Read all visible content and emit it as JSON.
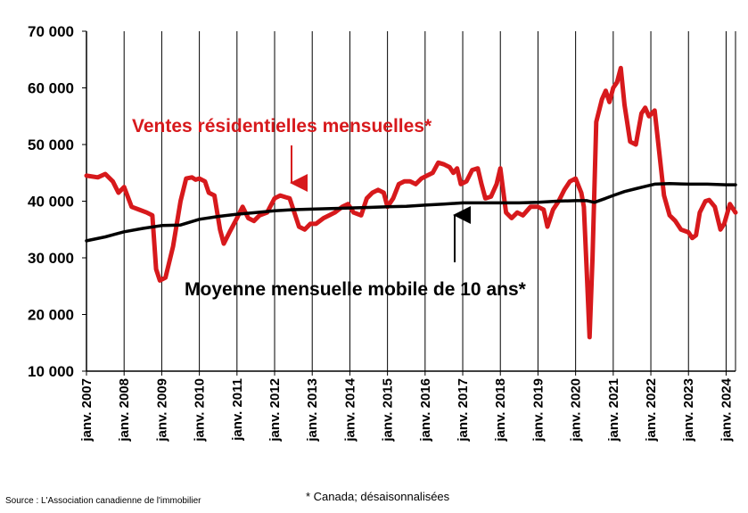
{
  "chart_data": {
    "type": "line",
    "ylim": [
      10000,
      70000
    ],
    "yticks": [
      {
        "value": 70000,
        "label": "70 000"
      },
      {
        "value": 60000,
        "label": "60 000"
      },
      {
        "value": 50000,
        "label": "50 000"
      },
      {
        "value": 40000,
        "label": "40 000"
      },
      {
        "value": 30000,
        "label": "30 000"
      },
      {
        "value": 20000,
        "label": "20 000"
      },
      {
        "value": 10000,
        "label": "10 000"
      }
    ],
    "xlim": [
      2007.0,
      2024.25
    ],
    "xticks": [
      {
        "value": 2007,
        "label": "janv. 2007"
      },
      {
        "value": 2008,
        "label": "janv. 2008"
      },
      {
        "value": 2009,
        "label": "janv. 2009"
      },
      {
        "value": 2010,
        "label": "janv. 2010"
      },
      {
        "value": 2011,
        "label": "janv. 2011"
      },
      {
        "value": 2012,
        "label": "janv. 2012"
      },
      {
        "value": 2013,
        "label": "janv. 2013"
      },
      {
        "value": 2014,
        "label": "janv. 2014"
      },
      {
        "value": 2015,
        "label": "janv. 2015"
      },
      {
        "value": 2016,
        "label": "janv. 2016"
      },
      {
        "value": 2017,
        "label": "janv. 2017"
      },
      {
        "value": 2018,
        "label": "janv. 2018"
      },
      {
        "value": 2019,
        "label": "janv. 2019"
      },
      {
        "value": 2020,
        "label": "janv. 2020"
      },
      {
        "value": 2021,
        "label": "janv. 2021"
      },
      {
        "value": 2022,
        "label": "janv. 2022"
      },
      {
        "value": 2023,
        "label": "janv. 2023"
      },
      {
        "value": 2024,
        "label": "janv. 2024"
      }
    ],
    "grid": {
      "vertical": true,
      "horizontal": false
    },
    "series": [
      {
        "name": "Ventes résidentielles mensuelles*",
        "color": "#d7191c",
        "points": [
          [
            2007.0,
            44500
          ],
          [
            2007.3,
            44200
          ],
          [
            2007.5,
            44800
          ],
          [
            2007.7,
            43500
          ],
          [
            2007.85,
            41500
          ],
          [
            2008.0,
            42500
          ],
          [
            2008.2,
            39000
          ],
          [
            2008.4,
            38500
          ],
          [
            2008.6,
            38000
          ],
          [
            2008.75,
            37500
          ],
          [
            2008.85,
            28000
          ],
          [
            2008.95,
            26000
          ],
          [
            2009.1,
            26500
          ],
          [
            2009.3,
            32000
          ],
          [
            2009.5,
            40000
          ],
          [
            2009.65,
            44000
          ],
          [
            2009.8,
            44200
          ],
          [
            2009.9,
            43800
          ],
          [
            2010.0,
            44000
          ],
          [
            2010.15,
            43500
          ],
          [
            2010.25,
            41500
          ],
          [
            2010.4,
            41000
          ],
          [
            2010.55,
            35000
          ],
          [
            2010.65,
            32500
          ],
          [
            2010.8,
            34500
          ],
          [
            2011.0,
            37000
          ],
          [
            2011.15,
            39000
          ],
          [
            2011.3,
            37000
          ],
          [
            2011.45,
            36500
          ],
          [
            2011.6,
            37500
          ],
          [
            2011.8,
            38000
          ],
          [
            2012.0,
            40500
          ],
          [
            2012.15,
            41000
          ],
          [
            2012.3,
            40700
          ],
          [
            2012.4,
            40500
          ],
          [
            2012.55,
            37500
          ],
          [
            2012.65,
            35500
          ],
          [
            2012.8,
            35000
          ],
          [
            2012.95,
            36000
          ],
          [
            2013.1,
            36000
          ],
          [
            2013.3,
            37000
          ],
          [
            2013.45,
            37500
          ],
          [
            2013.6,
            38000
          ],
          [
            2013.8,
            39000
          ],
          [
            2013.95,
            39500
          ],
          [
            2014.1,
            38000
          ],
          [
            2014.3,
            37500
          ],
          [
            2014.45,
            40500
          ],
          [
            2014.6,
            41500
          ],
          [
            2014.75,
            42000
          ],
          [
            2014.9,
            41500
          ],
          [
            2015.0,
            39000
          ],
          [
            2015.15,
            40500
          ],
          [
            2015.3,
            43000
          ],
          [
            2015.45,
            43500
          ],
          [
            2015.6,
            43500
          ],
          [
            2015.75,
            43000
          ],
          [
            2015.9,
            44000
          ],
          [
            2016.05,
            44500
          ],
          [
            2016.2,
            45000
          ],
          [
            2016.35,
            46800
          ],
          [
            2016.5,
            46500
          ],
          [
            2016.65,
            46000
          ],
          [
            2016.75,
            45000
          ],
          [
            2016.85,
            45800
          ],
          [
            2016.95,
            43000
          ],
          [
            2017.1,
            43500
          ],
          [
            2017.25,
            45500
          ],
          [
            2017.4,
            45800
          ],
          [
            2017.5,
            43000
          ],
          [
            2017.6,
            40500
          ],
          [
            2017.75,
            40800
          ],
          [
            2017.9,
            43000
          ],
          [
            2018.0,
            45800
          ],
          [
            2018.15,
            38000
          ],
          [
            2018.3,
            37000
          ],
          [
            2018.45,
            38000
          ],
          [
            2018.6,
            37500
          ],
          [
            2018.8,
            39000
          ],
          [
            2019.0,
            39000
          ],
          [
            2019.15,
            38500
          ],
          [
            2019.25,
            35500
          ],
          [
            2019.4,
            38500
          ],
          [
            2019.55,
            40000
          ],
          [
            2019.7,
            42000
          ],
          [
            2019.85,
            43500
          ],
          [
            2020.0,
            44000
          ],
          [
            2020.15,
            41500
          ],
          [
            2020.22,
            39000
          ],
          [
            2020.3,
            27000
          ],
          [
            2020.37,
            16000
          ],
          [
            2020.45,
            30000
          ],
          [
            2020.55,
            54000
          ],
          [
            2020.7,
            58000
          ],
          [
            2020.8,
            59500
          ],
          [
            2020.9,
            57500
          ],
          [
            2021.0,
            60000
          ],
          [
            2021.1,
            61000
          ],
          [
            2021.2,
            63500
          ],
          [
            2021.3,
            57000
          ],
          [
            2021.45,
            50500
          ],
          [
            2021.6,
            50000
          ],
          [
            2021.75,
            55500
          ],
          [
            2021.85,
            56500
          ],
          [
            2021.95,
            55000
          ],
          [
            2022.1,
            56000
          ],
          [
            2022.2,
            50000
          ],
          [
            2022.35,
            41000
          ],
          [
            2022.5,
            37500
          ],
          [
            2022.65,
            36500
          ],
          [
            2022.8,
            35000
          ],
          [
            2023.0,
            34500
          ],
          [
            2023.1,
            33500
          ],
          [
            2023.2,
            34000
          ],
          [
            2023.3,
            38000
          ],
          [
            2023.45,
            40000
          ],
          [
            2023.55,
            40200
          ],
          [
            2023.7,
            39000
          ],
          [
            2023.85,
            35000
          ],
          [
            2023.95,
            36000
          ],
          [
            2024.1,
            39500
          ],
          [
            2024.25,
            38000
          ]
        ]
      },
      {
        "name": "Moyenne mensuelle mobile de 10 ans*",
        "color": "#000000",
        "points": [
          [
            2007.0,
            33000
          ],
          [
            2007.5,
            33700
          ],
          [
            2008.0,
            34600
          ],
          [
            2008.5,
            35200
          ],
          [
            2009.0,
            35700
          ],
          [
            2009.5,
            35800
          ],
          [
            2010.0,
            36800
          ],
          [
            2010.5,
            37300
          ],
          [
            2011.0,
            37700
          ],
          [
            2011.5,
            38000
          ],
          [
            2012.0,
            38300
          ],
          [
            2012.5,
            38500
          ],
          [
            2013.0,
            38600
          ],
          [
            2013.5,
            38700
          ],
          [
            2014.0,
            38800
          ],
          [
            2014.5,
            38900
          ],
          [
            2015.0,
            39000
          ],
          [
            2015.5,
            39100
          ],
          [
            2016.0,
            39300
          ],
          [
            2016.5,
            39500
          ],
          [
            2017.0,
            39700
          ],
          [
            2017.5,
            39700
          ],
          [
            2018.0,
            39700
          ],
          [
            2018.5,
            39700
          ],
          [
            2019.0,
            39800
          ],
          [
            2019.5,
            40000
          ],
          [
            2020.0,
            40100
          ],
          [
            2020.3,
            40100
          ],
          [
            2020.5,
            39800
          ],
          [
            2020.8,
            40500
          ],
          [
            2021.0,
            41000
          ],
          [
            2021.3,
            41700
          ],
          [
            2021.6,
            42200
          ],
          [
            2021.9,
            42700
          ],
          [
            2022.1,
            43000
          ],
          [
            2022.5,
            43100
          ],
          [
            2023.0,
            43000
          ],
          [
            2023.5,
            43000
          ],
          [
            2024.0,
            42900
          ],
          [
            2024.25,
            42900
          ]
        ]
      }
    ],
    "annotations": [
      {
        "text": "Ventes résidentielles mensuelles*",
        "color": "#d7191c",
        "arrow_target": [
          2012.45,
          41000
        ]
      },
      {
        "text": "Moyenne mensuelle mobile de 10 ans*",
        "color": "#000000",
        "arrow_target": [
          2016.8,
          39700
        ]
      }
    ]
  },
  "footer": {
    "source": "Source : L'Association canadienne de l'immobilier",
    "note": "* Canada; désaisonnalisées"
  }
}
